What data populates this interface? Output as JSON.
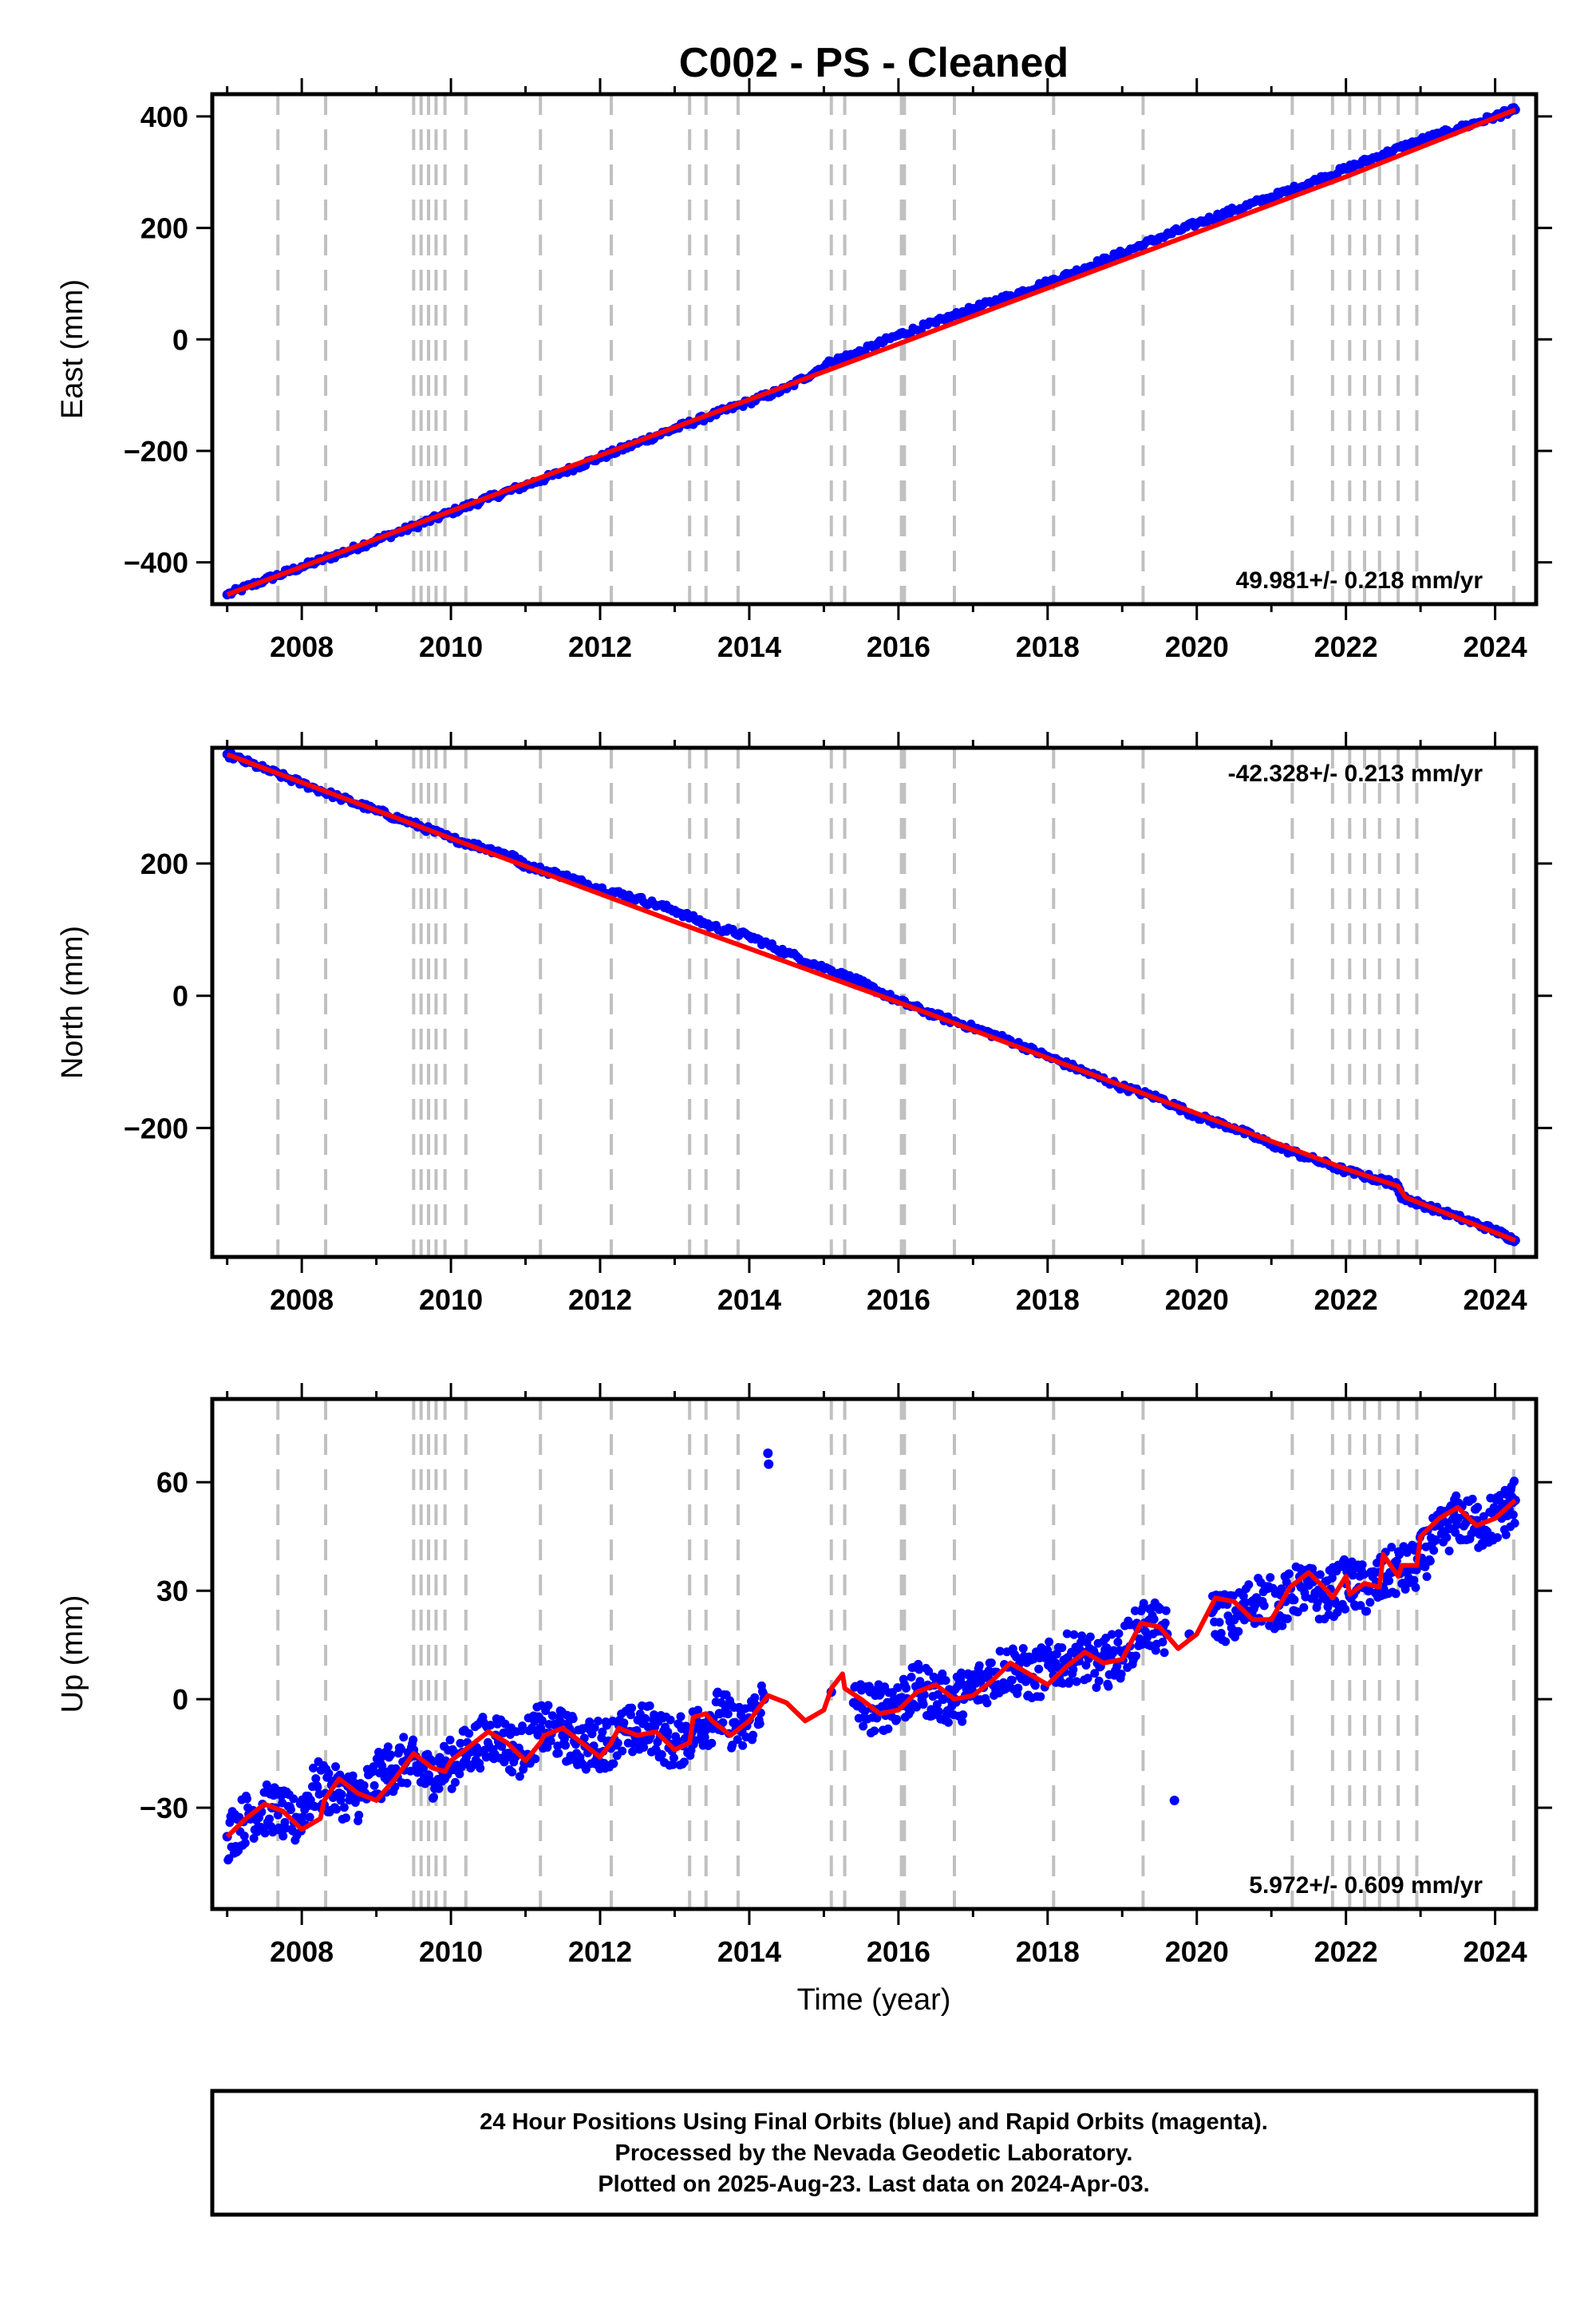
{
  "chart_data": [
    {
      "type": "scatter",
      "title": "C002  - PS - Cleaned",
      "ylabel": "East (mm)",
      "xlim": [
        2006.8,
        2024.55
      ],
      "ylim": [
        -475,
        440
      ],
      "yticks": [
        -400,
        -200,
        0,
        200,
        400
      ],
      "xticks": [
        2008,
        2010,
        2012,
        2014,
        2016,
        2018,
        2020,
        2022,
        2024
      ],
      "rate_label": "49.981+/- 0.218 mm/yr",
      "rate_position": "bottom-right",
      "grid": false,
      "series": [
        {
          "color": "#0000ff",
          "marker": "dot",
          "x": [
            2007.0,
            2007.5,
            2008.0,
            2008.5,
            2009.0,
            2009.5,
            2010.0,
            2010.5,
            2011.0,
            2011.5,
            2012.0,
            2012.5,
            2013.0,
            2013.5,
            2014.0,
            2014.5,
            2015.1,
            2015.5,
            2016.0,
            2016.5,
            2017.0,
            2017.5,
            2018.0,
            2018.5,
            2019.0,
            2019.5,
            2020.0,
            2020.5,
            2021.0,
            2021.5,
            2022.0,
            2022.5,
            2023.0,
            2023.5,
            2024.0,
            2024.27
          ],
          "y": [
            -458,
            -432,
            -408,
            -385,
            -360,
            -336,
            -310,
            -285,
            -262,
            -238,
            -212,
            -186,
            -160,
            -136,
            -112,
            -88,
            -40,
            -22,
            8,
            30,
            55,
            78,
            102,
            128,
            155,
            182,
            208,
            232,
            255,
            280,
            306,
            332,
            357,
            378,
            400,
            412
          ]
        },
        {
          "color": "#ff0000",
          "marker": "line",
          "x": [
            2007.0,
            2010.0,
            2013.0,
            2016.0,
            2019.0,
            2022.0,
            2024.27
          ],
          "y": [
            -458,
            -308,
            -158,
            -8,
            142,
            292,
            412
          ]
        }
      ],
      "vlines": [
        2007.68,
        2008.32,
        2009.5,
        2009.6,
        2009.7,
        2009.8,
        2009.92,
        2010.2,
        2011.2,
        2012.15,
        2013.2,
        2013.42,
        2013.85,
        2015.1,
        2015.28,
        2016.04,
        2016.08,
        2016.75,
        2018.08,
        2019.28,
        2021.28,
        2021.82,
        2022.05,
        2022.25,
        2022.45,
        2022.7,
        2022.95,
        2024.25
      ],
      "vline_color": "#c0c0c0"
    },
    {
      "type": "scatter",
      "ylabel": "North (mm)",
      "xlim": [
        2006.8,
        2024.55
      ],
      "ylim": [
        -395,
        375
      ],
      "yticks": [
        -200,
        0,
        200
      ],
      "xticks": [
        2008,
        2010,
        2012,
        2014,
        2016,
        2018,
        2020,
        2022,
        2024
      ],
      "rate_label": "-42.328+/- 0.213 mm/yr",
      "rate_position": "top-right",
      "grid": false,
      "series": [
        {
          "color": "#0000ff",
          "marker": "dot",
          "x": [
            2007.0,
            2007.5,
            2008.0,
            2008.5,
            2009.0,
            2009.5,
            2010.0,
            2010.5,
            2010.8,
            2011.0,
            2011.5,
            2012.0,
            2012.5,
            2013.0,
            2013.5,
            2014.0,
            2014.5,
            2015.1,
            2015.5,
            2016.0,
            2016.5,
            2017.0,
            2017.5,
            2018.0,
            2018.5,
            2019.0,
            2019.5,
            2020.0,
            2020.5,
            2021.0,
            2021.5,
            2022.0,
            2022.5,
            2022.68,
            2022.75,
            2023.0,
            2023.5,
            2024.0,
            2024.27
          ],
          "y": [
            365,
            343,
            321,
            300,
            280,
            260,
            238,
            222,
            212,
            197,
            182,
            162,
            147,
            129,
            105,
            90,
            65,
            38,
            20,
            -8,
            -30,
            -48,
            -68,
            -92,
            -115,
            -138,
            -155,
            -182,
            -200,
            -225,
            -245,
            -265,
            -280,
            -285,
            -305,
            -315,
            -335,
            -355,
            -370
          ]
        },
        {
          "color": "#ff0000",
          "marker": "line",
          "x": [
            2007.0,
            2010.0,
            2013.0,
            2016.0,
            2019.0,
            2022.0,
            2022.7,
            2022.8,
            2024.27
          ],
          "y": [
            365,
            238,
            112,
            -10,
            -136,
            -262,
            -288,
            -305,
            -370
          ]
        }
      ],
      "vlines": [
        2007.68,
        2008.32,
        2009.5,
        2009.6,
        2009.7,
        2009.8,
        2009.92,
        2010.2,
        2011.2,
        2012.15,
        2013.2,
        2013.42,
        2013.85,
        2015.1,
        2015.28,
        2016.04,
        2016.08,
        2016.75,
        2018.08,
        2019.28,
        2021.28,
        2021.82,
        2022.05,
        2022.25,
        2022.45,
        2022.7,
        2022.95,
        2024.25
      ],
      "vline_color": "#c0c0c0"
    },
    {
      "type": "scatter",
      "xlabel": "Time (year)",
      "ylabel": "Up (mm)",
      "xlim": [
        2006.8,
        2024.55
      ],
      "ylim": [
        -58,
        83
      ],
      "yticks": [
        -30,
        0,
        30,
        60
      ],
      "xticks": [
        2008,
        2010,
        2012,
        2014,
        2016,
        2018,
        2020,
        2022,
        2024
      ],
      "rate_label": "5.972+/- 0.609 mm/yr",
      "rate_position": "bottom-right",
      "grid": false,
      "series": [
        {
          "color": "#0000ff",
          "marker": "dot",
          "x": [
            2007.0,
            2007.3,
            2007.6,
            2007.9,
            2008.2,
            2008.5,
            2008.8,
            2009.1,
            2009.4,
            2009.7,
            2010.0,
            2010.3,
            2010.6,
            2010.9,
            2011.2,
            2011.5,
            2011.8,
            2012.1,
            2012.4,
            2012.7,
            2013.0,
            2013.3,
            2013.6,
            2013.9,
            2014.2,
            2014.25,
            2014.26,
            2015.1,
            2015.4,
            2015.7,
            2016.0,
            2016.3,
            2016.6,
            2016.9,
            2017.2,
            2017.5,
            2017.8,
            2018.1,
            2018.4,
            2018.7,
            2019.0,
            2019.3,
            2019.6,
            2019.7,
            2019.9,
            2020.2,
            2020.5,
            2020.8,
            2021.1,
            2021.4,
            2021.7,
            2022.0,
            2022.3,
            2022.6,
            2022.9,
            2023.2,
            2023.5,
            2023.8,
            2024.1,
            2024.27
          ],
          "y": [
            -38,
            -32,
            -30,
            -34,
            -24,
            -26,
            -27,
            -20,
            -17,
            -21,
            -18,
            -13,
            -10,
            -15,
            -8,
            -10,
            -13,
            -12,
            -9,
            -8,
            -13,
            -8,
            -4,
            -9,
            0,
            68,
            65,
            2,
            -1,
            -3,
            0,
            3,
            0,
            1,
            6,
            9,
            6,
            10,
            12,
            9,
            13,
            21,
            18,
            -28,
            18,
            24,
            22,
            28,
            26,
            31,
            28,
            32,
            30,
            35,
            36,
            44,
            50,
            48,
            51,
            55
          ]
        },
        {
          "color": "#ff0000",
          "marker": "line",
          "x": [
            2007.0,
            2007.25,
            2007.5,
            2007.75,
            2008.0,
            2008.25,
            2008.3,
            2008.5,
            2008.75,
            2009.0,
            2009.25,
            2009.5,
            2009.75,
            2009.92,
            2010.0,
            2010.25,
            2010.5,
            2010.75,
            2011.0,
            2011.2,
            2011.25,
            2011.5,
            2011.75,
            2012.0,
            2012.15,
            2012.25,
            2012.5,
            2012.75,
            2013.0,
            2013.2,
            2013.25,
            2013.42,
            2013.5,
            2013.75,
            2014.0,
            2014.25,
            2014.5,
            2014.75,
            2015.0,
            2015.1,
            2015.25,
            2015.28,
            2015.5,
            2015.75,
            2016.0,
            2016.25,
            2016.5,
            2016.75,
            2017.0,
            2017.25,
            2017.5,
            2017.75,
            2018.0,
            2018.25,
            2018.5,
            2018.75,
            2019.0,
            2019.25,
            2019.5,
            2019.75,
            2020.0,
            2020.25,
            2020.5,
            2020.75,
            2021.0,
            2021.25,
            2021.5,
            2021.75,
            2021.82,
            2022.0,
            2022.05,
            2022.25,
            2022.45,
            2022.5,
            2022.7,
            2022.75,
            2022.95,
            2023.0,
            2023.25,
            2023.5,
            2023.75,
            2024.0,
            2024.27
          ],
          "y": [
            -38,
            -33,
            -29,
            -31,
            -36,
            -33,
            -28,
            -22,
            -26,
            -28,
            -22,
            -15,
            -19,
            -20,
            -17,
            -13,
            -9,
            -12,
            -17,
            -12,
            -10,
            -8,
            -12,
            -16,
            -12,
            -8,
            -10,
            -9,
            -14,
            -12,
            -5,
            -4,
            -6,
            -10,
            -6,
            1,
            -1,
            -6,
            -3,
            3,
            7,
            3,
            0,
            -4,
            -3,
            2,
            4,
            0,
            1,
            5,
            10,
            7,
            4,
            9,
            13,
            10,
            11,
            21,
            20,
            14,
            18,
            28,
            27,
            22,
            22,
            31,
            35,
            30,
            28,
            34,
            29,
            32,
            31,
            40,
            34,
            37,
            37,
            45,
            50,
            53,
            48,
            50,
            55
          ]
        }
      ],
      "vlines": [
        2007.68,
        2008.32,
        2009.5,
        2009.6,
        2009.7,
        2009.8,
        2009.92,
        2010.2,
        2011.2,
        2012.15,
        2013.2,
        2013.42,
        2013.85,
        2015.1,
        2015.28,
        2016.04,
        2016.08,
        2016.75,
        2018.08,
        2019.28,
        2021.28,
        2021.82,
        2022.05,
        2022.25,
        2022.45,
        2022.7,
        2022.95,
        2024.25
      ],
      "vline_color": "#c0c0c0"
    }
  ],
  "footer": {
    "line1": "24 Hour Positions Using Final Orbits (blue) and Rapid Orbits (magenta).",
    "line2": "Processed by the Nevada Geodetic Laboratory.",
    "line3": "Plotted on 2025-Aug-23. Last data on 2024-Apr-03."
  }
}
